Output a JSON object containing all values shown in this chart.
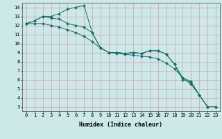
{
  "xlabel": "Humidex (Indice chaleur)",
  "ylabel": "",
  "background_color": "#cce8e8",
  "grid_color": "#d4a0a8",
  "line_color": "#1a6b6b",
  "xlim": [
    -0.5,
    23.5
  ],
  "ylim": [
    2.5,
    14.5
  ],
  "xticks": [
    0,
    1,
    2,
    3,
    4,
    5,
    6,
    7,
    8,
    9,
    10,
    11,
    12,
    13,
    14,
    15,
    16,
    17,
    18,
    19,
    20,
    21,
    22,
    23
  ],
  "yticks": [
    3,
    4,
    5,
    6,
    7,
    8,
    9,
    10,
    11,
    12,
    13,
    14
  ],
  "series1_x": [
    0,
    1,
    2,
    3,
    4,
    5,
    6,
    7,
    8,
    9,
    10,
    11,
    12,
    13,
    14,
    15,
    16,
    17,
    18,
    19,
    20,
    21,
    22,
    23
  ],
  "series1_y": [
    12.2,
    12.5,
    13.0,
    12.8,
    12.7,
    12.2,
    12.0,
    11.8,
    11.2,
    9.5,
    9.0,
    9.0,
    8.9,
    9.0,
    8.9,
    9.2,
    9.2,
    8.8,
    7.7,
    6.2,
    5.8,
    4.3,
    3.0,
    3.0
  ],
  "series2_x": [
    0,
    1,
    2,
    3,
    4,
    5,
    6,
    7,
    8,
    9,
    10,
    11,
    12,
    13,
    14,
    15,
    16,
    17,
    18,
    19,
    20,
    21,
    22,
    23
  ],
  "series2_y": [
    12.2,
    12.5,
    13.0,
    13.0,
    13.3,
    13.8,
    14.0,
    14.2,
    11.2,
    9.5,
    9.0,
    9.0,
    8.9,
    9.0,
    8.9,
    9.2,
    9.2,
    8.8,
    7.7,
    6.0,
    5.7,
    4.3,
    3.0,
    3.0
  ],
  "series3_x": [
    0,
    1,
    2,
    3,
    4,
    5,
    6,
    7,
    8,
    9,
    10,
    11,
    12,
    13,
    14,
    15,
    16,
    17,
    18,
    19,
    20,
    21,
    22,
    23
  ],
  "series3_y": [
    12.2,
    12.2,
    12.2,
    12.0,
    11.8,
    11.5,
    11.2,
    10.8,
    10.2,
    9.5,
    9.0,
    8.9,
    8.8,
    8.7,
    8.6,
    8.5,
    8.3,
    7.8,
    7.2,
    6.2,
    5.5,
    4.3,
    3.0,
    3.0
  ],
  "tick_fontsize": 5,
  "xlabel_fontsize": 6,
  "marker_size": 2
}
